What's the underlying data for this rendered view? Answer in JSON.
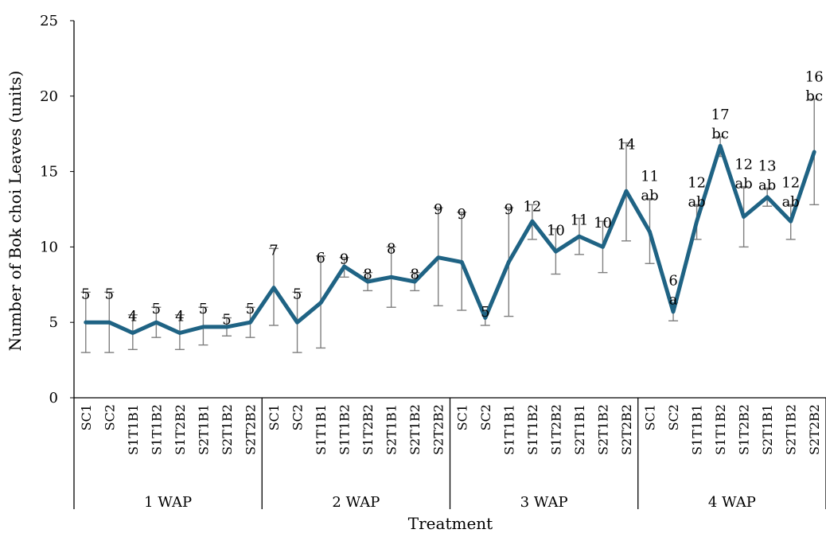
{
  "chart_data": {
    "type": "line",
    "xlabel": "Treatment",
    "ylabel": "Number of Bok choi Leaves (units)",
    "ylim": [
      0,
      25
    ],
    "yticks": [
      0,
      5,
      10,
      15,
      20,
      25
    ],
    "grid": false,
    "legend": "none",
    "line_color": "#1f6384",
    "error_bar_color": "#7f7f7f",
    "categories": [
      "SC1",
      "SC2",
      "S1T1B1",
      "S1T1B2",
      "S1T2B2",
      "S2T1B1",
      "S2T1B2",
      "S2T2B2",
      "SC1",
      "SC2",
      "S1T1B1",
      "S1T1B2",
      "S1T2B2",
      "S2T1B1",
      "S2T1B2",
      "S2T2B2",
      "SC1",
      "SC2",
      "S1T1B1",
      "S1T1B2",
      "S1T2B2",
      "S2T1B1",
      "S2T1B2",
      "S2T2B2",
      "SC1",
      "SC2",
      "S1T1B1",
      "S1T1B2",
      "S1T2B2",
      "S2T1B1",
      "S2T1B2",
      "S2T2B2"
    ],
    "groups": [
      {
        "label": "1 WAP",
        "count": 8
      },
      {
        "label": "2 WAP",
        "count": 8
      },
      {
        "label": "3 WAP",
        "count": 8
      },
      {
        "label": "4 WAP",
        "count": 8
      }
    ],
    "series": [
      {
        "values": [
          5.0,
          5.0,
          4.3,
          5.0,
          4.3,
          4.7,
          4.7,
          5.0,
          7.3,
          5.0,
          6.3,
          8.7,
          7.7,
          8.0,
          7.7,
          9.3,
          9.0,
          5.3,
          9.0,
          11.7,
          9.7,
          10.7,
          10.0,
          13.7,
          11.0,
          5.7,
          11.7,
          16.7,
          12.0,
          13.3,
          11.7,
          16.3
        ],
        "err_low": [
          3.0,
          3.0,
          3.2,
          4.0,
          3.2,
          3.5,
          4.1,
          4.0,
          4.8,
          3.0,
          3.3,
          8.0,
          7.1,
          6.0,
          7.1,
          6.1,
          5.8,
          4.8,
          5.4,
          10.5,
          8.2,
          9.5,
          8.3,
          10.4,
          8.9,
          5.1,
          10.5,
          16.0,
          10.0,
          12.7,
          10.5,
          12.8
        ],
        "err_high": [
          7.0,
          7.0,
          5.5,
          6.0,
          5.5,
          6.0,
          5.3,
          6.0,
          9.9,
          7.0,
          9.4,
          9.3,
          8.3,
          10.0,
          8.3,
          12.6,
          12.3,
          5.8,
          12.6,
          12.8,
          11.2,
          11.9,
          11.7,
          16.9,
          13.2,
          6.3,
          12.8,
          17.3,
          14.0,
          13.9,
          12.8,
          19.8
        ],
        "labels": [
          [
            "5"
          ],
          [
            "5"
          ],
          [
            "4"
          ],
          [
            "5"
          ],
          [
            "4"
          ],
          [
            "5"
          ],
          [
            "5"
          ],
          [
            "5"
          ],
          [
            "7"
          ],
          [
            "5"
          ],
          [
            "6"
          ],
          [
            "9"
          ],
          [
            "8"
          ],
          [
            "8"
          ],
          [
            "8"
          ],
          [
            "9"
          ],
          [
            "9"
          ],
          [
            "5"
          ],
          [
            "9"
          ],
          [
            "12"
          ],
          [
            "10"
          ],
          [
            "11"
          ],
          [
            "10"
          ],
          [
            "14"
          ],
          [
            "11",
            "ab"
          ],
          [
            "6",
            "a"
          ],
          [
            "12",
            "ab"
          ],
          [
            "17",
            "bc"
          ],
          [
            "12",
            "ab"
          ],
          [
            "13",
            "ab"
          ],
          [
            "12",
            "ab"
          ],
          [
            "16",
            "bc"
          ]
        ]
      }
    ]
  }
}
